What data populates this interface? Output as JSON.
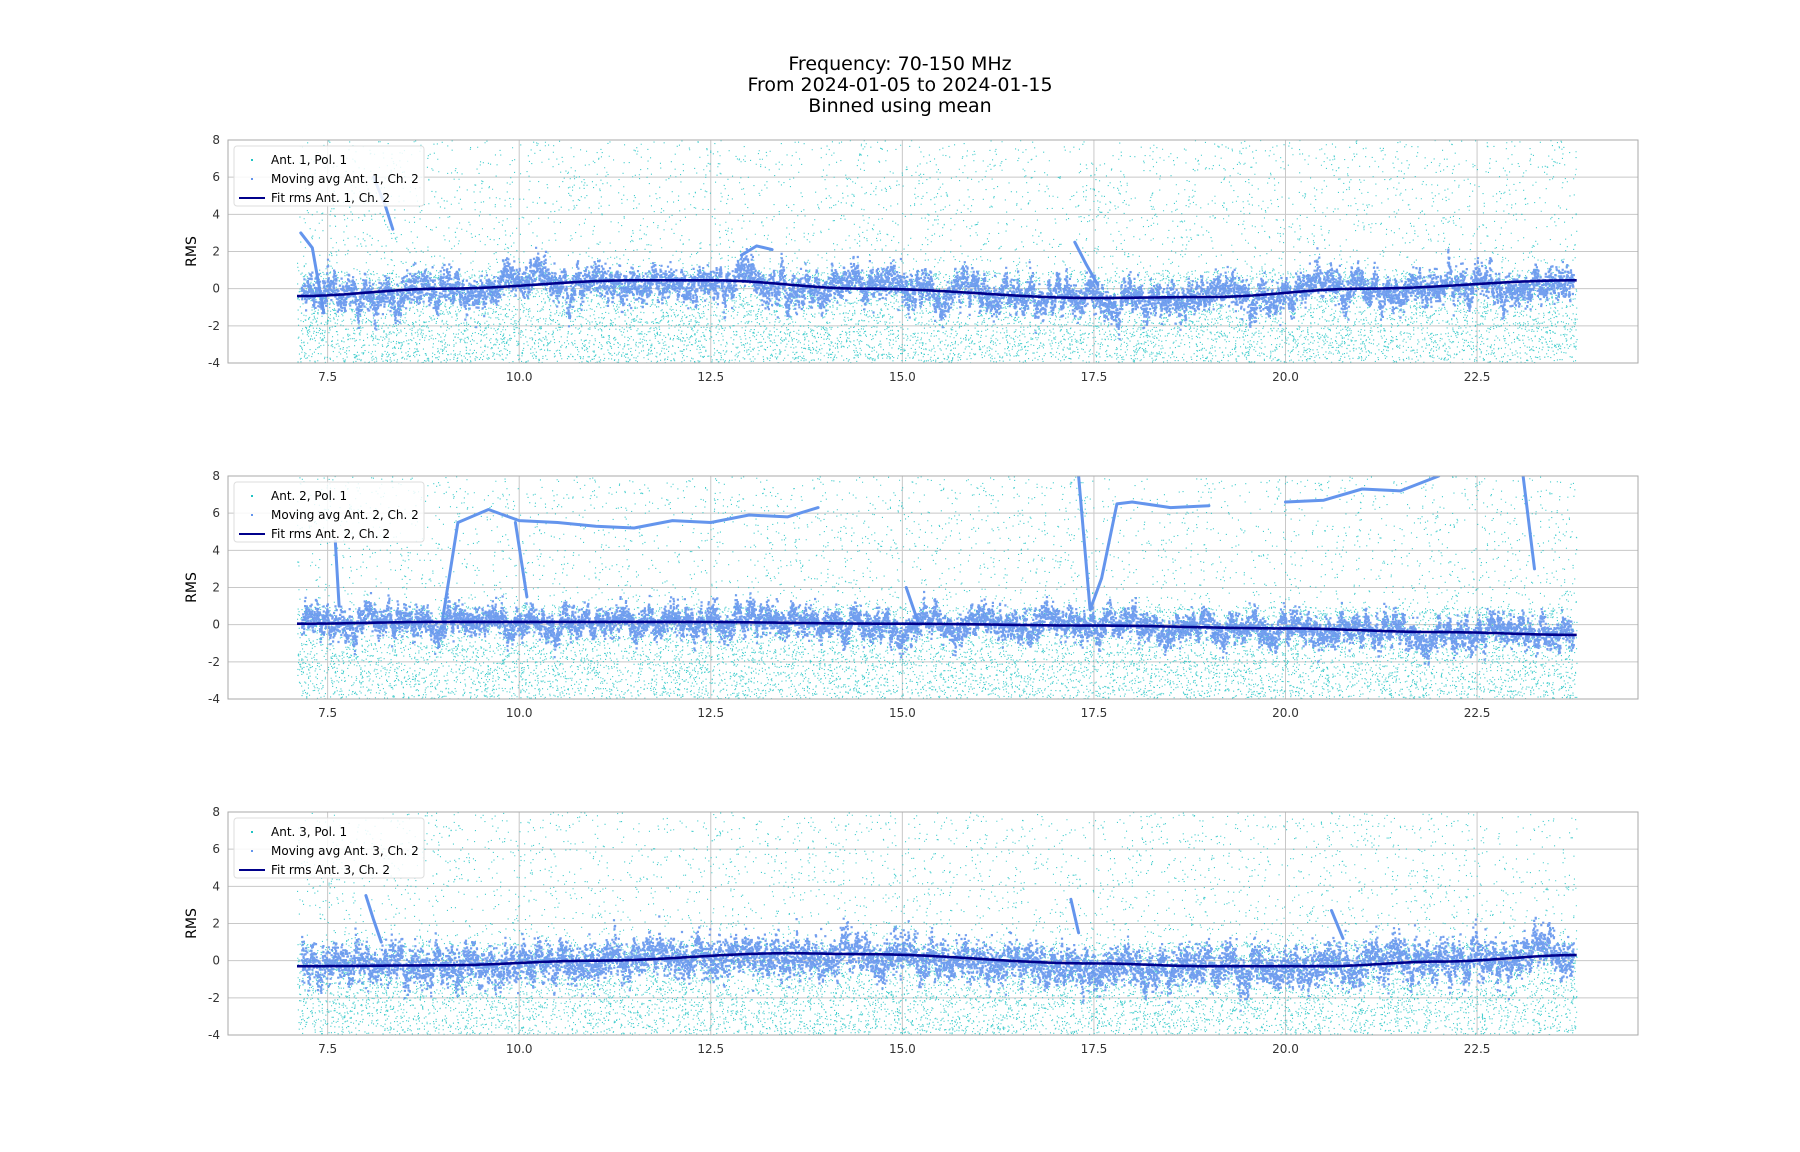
{
  "title_lines": [
    "Frequency: 70-150 MHz",
    "From 2024-01-05 to 2024-01-15",
    "Binned using mean"
  ],
  "colors": {
    "raw": "#20c4c4",
    "moving_avg": "#6495ed",
    "fit": "#00008b",
    "grid": "#c8c8c8",
    "frame": "#aaaaaa"
  },
  "chart_data": [
    {
      "type": "scatter",
      "ylabel": "RMS",
      "xlabel": "",
      "xlim": [
        6.2,
        24.6
      ],
      "ylim": [
        -4,
        8
      ],
      "xticks": [
        "7.5",
        "10.0",
        "12.5",
        "15.0",
        "17.5",
        "20.0",
        "22.5"
      ],
      "yticks": [
        "8",
        "6",
        "4",
        "2",
        "0",
        "-2",
        "-4"
      ],
      "grid": true,
      "legend_position": "upper-left",
      "series": [
        {
          "name": "Ant. 1, Pol. 1",
          "kind": "raw-scatter",
          "x_range": [
            7.1,
            23.8
          ],
          "approx_count": 12000,
          "y_range": [
            -4,
            8
          ]
        },
        {
          "name": "Moving avg Ant. 1, Ch. 2",
          "kind": "moving-average",
          "band_halfwidth": 0.8,
          "excursions": [
            {
              "x": [
                7.15,
                7.3,
                7.45
              ],
              "y": [
                3.0,
                2.2,
                -1.3
              ]
            },
            {
              "x": [
                8.1,
                8.25,
                8.35
              ],
              "y": [
                6.0,
                4.5,
                3.2
              ]
            },
            {
              "x": [
                12.9,
                13.1,
                13.3
              ],
              "y": [
                1.8,
                2.3,
                2.1
              ]
            },
            {
              "x": [
                17.25,
                17.4,
                17.55
              ],
              "y": [
                2.5,
                1.3,
                0.2
              ]
            }
          ]
        },
        {
          "name": "Fit rms Ant. 1, Ch. 2",
          "kind": "fit",
          "x": [
            7.1,
            9.0,
            11.5,
            12.5,
            14.5,
            17.5,
            19.0,
            21.0,
            23.8
          ],
          "y": [
            -0.4,
            0.0,
            0.45,
            0.45,
            0.0,
            -0.5,
            -0.45,
            0.0,
            0.45
          ]
        }
      ]
    },
    {
      "type": "scatter",
      "ylabel": "RMS",
      "xlabel": "",
      "xlim": [
        6.2,
        24.6
      ],
      "ylim": [
        -4,
        8
      ],
      "xticks": [
        "7.5",
        "10.0",
        "12.5",
        "15.0",
        "17.5",
        "20.0",
        "22.5"
      ],
      "yticks": [
        "8",
        "6",
        "4",
        "2",
        "0",
        "-2",
        "-4"
      ],
      "grid": true,
      "legend_position": "upper-left",
      "series": [
        {
          "name": "Ant. 2, Pol. 1",
          "kind": "raw-scatter",
          "x_range": [
            7.1,
            23.8
          ],
          "approx_count": 12000,
          "y_range": [
            -4,
            8
          ]
        },
        {
          "name": "Moving avg Ant. 2, Ch. 2",
          "kind": "moving-average",
          "band_halfwidth": 0.7,
          "excursions": [
            {
              "x": [
                9.0,
                9.2,
                9.6,
                10.0,
                10.5,
                11.0,
                11.5,
                12.0,
                12.5,
                13.0,
                13.5,
                13.9
              ],
              "y": [
                0.3,
                5.5,
                6.2,
                5.6,
                5.5,
                5.3,
                5.2,
                5.6,
                5.5,
                5.9,
                5.8,
                6.3
              ]
            },
            {
              "x": [
                9.95,
                10.1
              ],
              "y": [
                5.5,
                1.5
              ]
            },
            {
              "x": [
                7.65,
                7.6
              ],
              "y": [
                1.0,
                4.5
              ]
            },
            {
              "x": [
                17.3,
                17.45,
                17.6,
                17.8,
                18.0,
                18.5,
                19.0
              ],
              "y": [
                8.0,
                0.8,
                2.5,
                6.5,
                6.6,
                6.3,
                6.4
              ]
            },
            {
              "x": [
                20.0,
                20.5,
                21.0,
                21.5,
                22.0
              ],
              "y": [
                6.6,
                6.7,
                7.3,
                7.2,
                8.0
              ]
            },
            {
              "x": [
                23.1,
                23.25
              ],
              "y": [
                8.0,
                3.0
              ]
            },
            {
              "x": [
                15.05,
                15.2
              ],
              "y": [
                2.0,
                0.2
              ]
            }
          ]
        },
        {
          "name": "Fit rms Ant. 2, Ch. 2",
          "kind": "fit",
          "x": [
            7.1,
            9.0,
            12.0,
            15.0,
            17.5,
            20.0,
            22.0,
            23.8
          ],
          "y": [
            0.05,
            0.15,
            0.15,
            0.05,
            -0.05,
            -0.2,
            -0.4,
            -0.55
          ]
        }
      ]
    },
    {
      "type": "scatter",
      "ylabel": "RMS",
      "xlabel": "",
      "xlim": [
        6.2,
        24.6
      ],
      "ylim": [
        -4,
        8
      ],
      "xticks": [
        "7.5",
        "10.0",
        "12.5",
        "15.0",
        "17.5",
        "20.0",
        "22.5"
      ],
      "yticks": [
        "8",
        "6",
        "4",
        "2",
        "0",
        "-2",
        "-4"
      ],
      "grid": true,
      "legend_position": "upper-left",
      "series": [
        {
          "name": "Ant. 3, Pol. 1",
          "kind": "raw-scatter",
          "x_range": [
            7.1,
            23.8
          ],
          "approx_count": 12000,
          "y_range": [
            -4,
            8
          ]
        },
        {
          "name": "Moving avg Ant. 3, Ch. 2",
          "kind": "moving-average",
          "band_halfwidth": 1.0,
          "excursions": [
            {
              "x": [
                8.0,
                8.1,
                8.2
              ],
              "y": [
                3.5,
                2.2,
                1.0
              ]
            },
            {
              "x": [
                17.2,
                17.3
              ],
              "y": [
                3.3,
                1.5
              ]
            },
            {
              "x": [
                20.6,
                20.75
              ],
              "y": [
                2.7,
                1.2
              ]
            }
          ]
        },
        {
          "name": "Fit rms Ant. 3, Ch. 2",
          "kind": "fit",
          "x": [
            7.1,
            9.0,
            11.0,
            13.5,
            14.5,
            17.5,
            19.0,
            20.5,
            22.0,
            23.8
          ],
          "y": [
            -0.3,
            -0.25,
            0.0,
            0.4,
            0.35,
            -0.15,
            -0.3,
            -0.3,
            -0.05,
            0.3
          ]
        }
      ]
    }
  ]
}
